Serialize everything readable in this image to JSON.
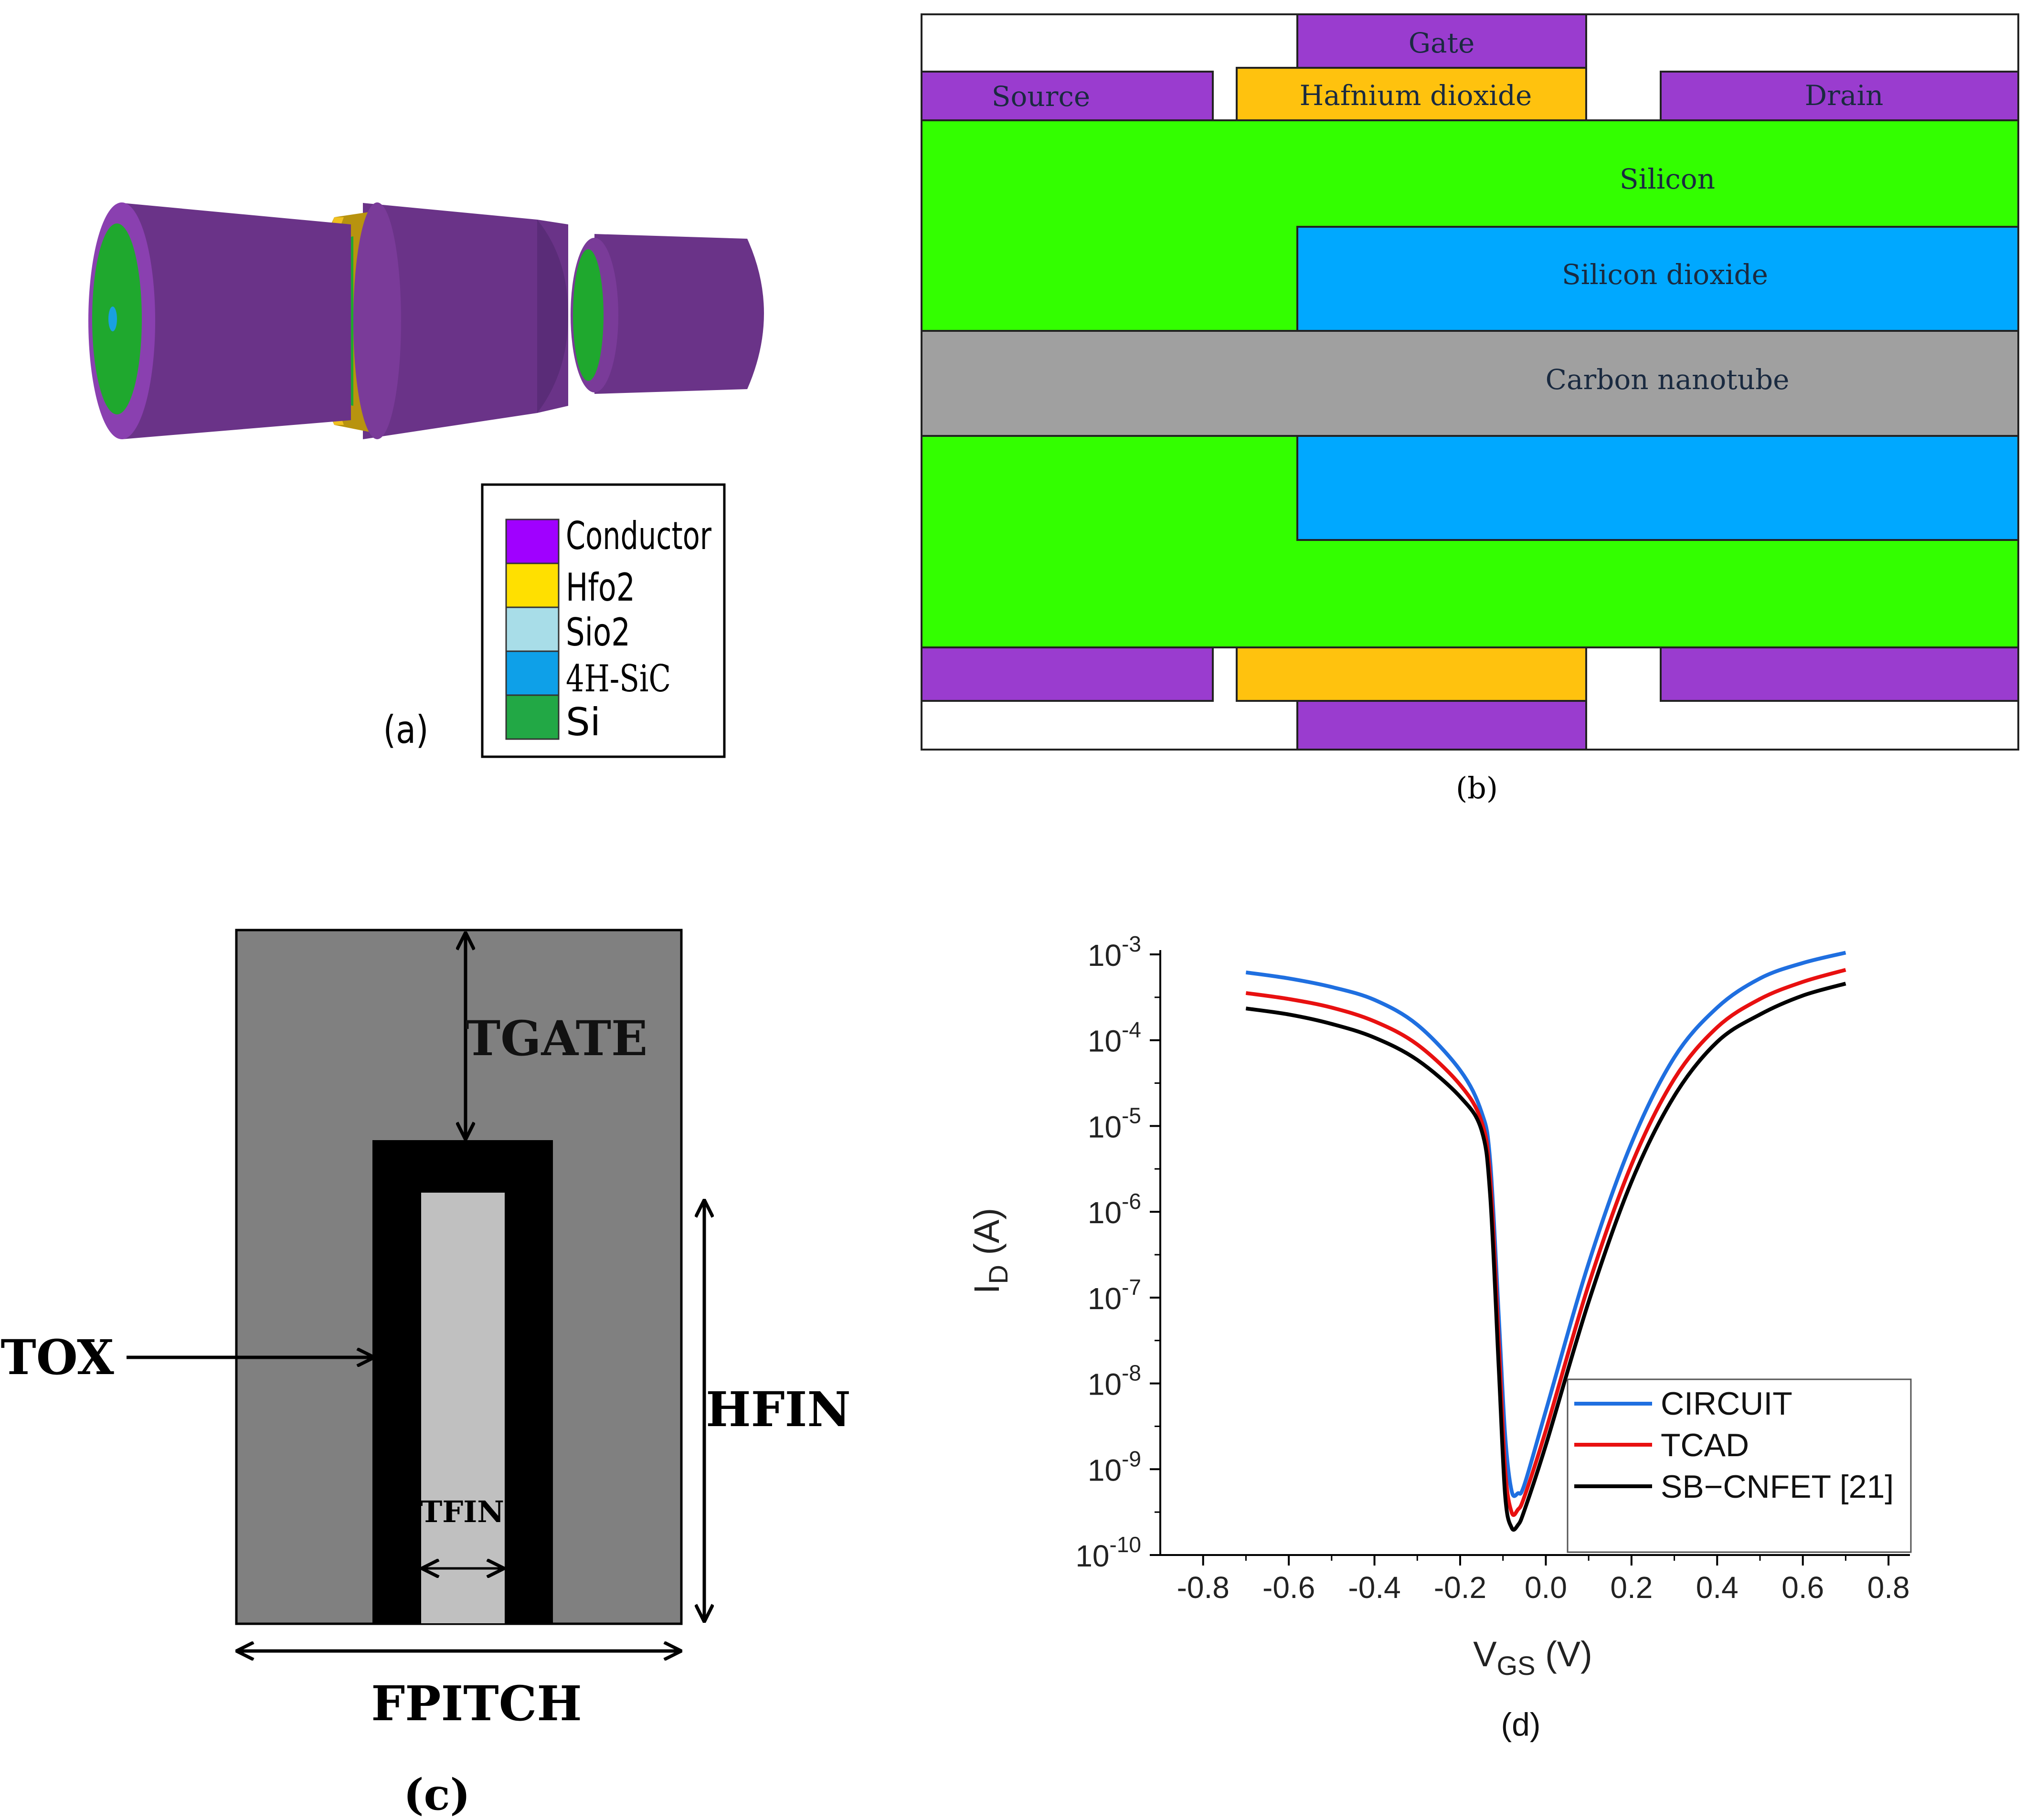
{
  "panel_a": {
    "label": "(a)",
    "legend": [
      {
        "label": "Conductor",
        "color": "#a000ff"
      },
      {
        "label": "Hfo2",
        "color": "#ffe000"
      },
      {
        "label": "Sio2",
        "color": "#a8dde8"
      },
      {
        "label": "4H-SiC",
        "color": "#0ea0e8"
      },
      {
        "label": "Si",
        "color": "#22a845"
      }
    ],
    "colors": {
      "conductor_body": "#6a3388",
      "conductor_dark": "#4e2a6a",
      "hfo2_band": "#b8930f",
      "hfo2_edge": "#f0c020",
      "si": "#1fa82e",
      "sic": "#19a0e0"
    }
  },
  "panel_b": {
    "label": "(b)",
    "layers": {
      "gate": "Gate",
      "source": "Source",
      "hfo2": "Hafnium dioxide",
      "drain": "Drain",
      "silicon": "Silicon",
      "sio2": "Silicon dioxide",
      "cnt": "Carbon nanotube"
    },
    "colors": {
      "metal": "#9a3ccf",
      "hfo2": "#ffc20e",
      "silicon": "#33ff00",
      "sio2": "#00a8ff",
      "cnt": "#a0a0a0"
    }
  },
  "panel_c": {
    "label": "(c)",
    "dims": {
      "tgate": "TGATE",
      "tox": "TOX",
      "hfin": "HFIN",
      "tfin": "TFIN",
      "fpitch": "FPITCH"
    },
    "colors": {
      "gate": "#808080",
      "oxide": "#000000",
      "fin": "#c0c0c0"
    }
  },
  "panel_d": {
    "label": "(d)",
    "chart_data": {
      "type": "line",
      "xlabel_main": "V",
      "xlabel_sub": "GS",
      "xlabel_unit": " (V)",
      "ylabel_main": "I",
      "ylabel_sub": "D",
      "ylabel_unit": " (A)",
      "xlim": [
        -0.9,
        0.85
      ],
      "ylim_exp": [
        -10,
        -2.95
      ],
      "y_log": true,
      "x_ticks": [
        "-0.8",
        "-0.6",
        "-0.4",
        "-0.2",
        "0.0",
        "0.2",
        "0.4",
        "0.6",
        "0.8"
      ],
      "y_ticks": [
        {
          "base": "10",
          "exp": "-3",
          "value": -3
        },
        {
          "base": "10",
          "exp": "-4",
          "value": -4
        },
        {
          "base": "10",
          "exp": "-5",
          "value": -5
        },
        {
          "base": "10",
          "exp": "-6",
          "value": -6
        },
        {
          "base": "10",
          "exp": "-7",
          "value": -7
        },
        {
          "base": "10",
          "exp": "-8",
          "value": -8
        },
        {
          "base": "10",
          "exp": "-9",
          "value": -9
        },
        {
          "base": "10",
          "exp": "-10",
          "value": -10
        }
      ],
      "legend_position": "lower-right",
      "series": [
        {
          "name": "CIRCUIT",
          "color": "#1f6fe0",
          "points": [
            [
              -0.7,
              -3.21
            ],
            [
              -0.6,
              -3.28
            ],
            [
              -0.5,
              -3.38
            ],
            [
              -0.4,
              -3.53
            ],
            [
              -0.3,
              -3.82
            ],
            [
              -0.2,
              -4.35
            ],
            [
              -0.15,
              -4.84
            ],
            [
              -0.13,
              -5.4
            ],
            [
              -0.11,
              -7.2
            ],
            [
              -0.095,
              -8.6
            ],
            [
              -0.08,
              -9.25
            ],
            [
              -0.065,
              -9.28
            ],
            [
              -0.05,
              -9.18
            ],
            [
              0.0,
              -8.32
            ],
            [
              0.1,
              -6.6
            ],
            [
              0.2,
              -5.2
            ],
            [
              0.3,
              -4.2
            ],
            [
              0.4,
              -3.62
            ],
            [
              0.5,
              -3.28
            ],
            [
              0.6,
              -3.1
            ],
            [
              0.7,
              -2.98
            ]
          ]
        },
        {
          "name": "TCAD",
          "color": "#e81010",
          "points": [
            [
              -0.7,
              -3.45
            ],
            [
              -0.6,
              -3.52
            ],
            [
              -0.5,
              -3.62
            ],
            [
              -0.4,
              -3.78
            ],
            [
              -0.3,
              -4.05
            ],
            [
              -0.2,
              -4.52
            ],
            [
              -0.15,
              -4.95
            ],
            [
              -0.13,
              -5.6
            ],
            [
              -0.11,
              -7.5
            ],
            [
              -0.095,
              -9.0
            ],
            [
              -0.08,
              -9.5
            ],
            [
              -0.065,
              -9.47
            ],
            [
              -0.05,
              -9.32
            ],
            [
              0.0,
              -8.55
            ],
            [
              0.1,
              -6.85
            ],
            [
              0.2,
              -5.45
            ],
            [
              0.3,
              -4.45
            ],
            [
              0.4,
              -3.85
            ],
            [
              0.5,
              -3.52
            ],
            [
              0.6,
              -3.32
            ],
            [
              0.7,
              -3.18
            ]
          ]
        },
        {
          "name": "SB−CNFET [21]",
          "color": "#000000",
          "points": [
            [
              -0.7,
              -3.63
            ],
            [
              -0.6,
              -3.7
            ],
            [
              -0.5,
              -3.81
            ],
            [
              -0.4,
              -3.97
            ],
            [
              -0.3,
              -4.23
            ],
            [
              -0.2,
              -4.66
            ],
            [
              -0.15,
              -5.05
            ],
            [
              -0.13,
              -5.8
            ],
            [
              -0.11,
              -7.8
            ],
            [
              -0.095,
              -9.3
            ],
            [
              -0.08,
              -9.68
            ],
            [
              -0.065,
              -9.65
            ],
            [
              -0.05,
              -9.48
            ],
            [
              0.0,
              -8.72
            ],
            [
              0.1,
              -7.05
            ],
            [
              0.2,
              -5.65
            ],
            [
              0.3,
              -4.65
            ],
            [
              0.4,
              -4.02
            ],
            [
              0.5,
              -3.7
            ],
            [
              0.6,
              -3.48
            ],
            [
              0.7,
              -3.34
            ]
          ]
        }
      ]
    }
  }
}
